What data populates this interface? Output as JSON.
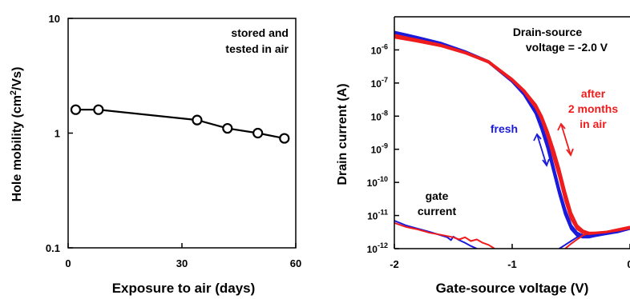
{
  "chart_data": [
    {
      "type": "line",
      "xlabel": "Exposure to air (days)",
      "ylabel_prefix": "Hole mobility (cm",
      "ylabel_sup": "2",
      "ylabel_suffix": "/Vs)",
      "xlim": [
        0,
        60
      ],
      "ylim": [
        0.1,
        10
      ],
      "yscale": "log",
      "xticks": [
        0,
        30,
        60
      ],
      "xtick_labels": [
        "0",
        "30",
        "60"
      ],
      "yticks": [
        0.1,
        1,
        10
      ],
      "ytick_labels": [
        "0.1",
        "1",
        "10"
      ],
      "annotations": [
        "stored and",
        "tested in air"
      ],
      "series": [
        {
          "color": "#000000",
          "x": [
            2,
            8,
            34,
            42,
            50,
            57
          ],
          "y": [
            1.6,
            1.6,
            1.3,
            1.1,
            1.0,
            0.9
          ]
        }
      ]
    },
    {
      "type": "line",
      "xlabel": "Gate-source voltage (V)",
      "ylabel": "Drain current (A)",
      "xlim": [
        -2,
        0
      ],
      "ylim": [
        1e-12,
        1e-05
      ],
      "yscale": "log",
      "xticks": [
        -2,
        -1,
        0
      ],
      "xtick_labels": [
        "-2",
        "-1",
        "0"
      ],
      "yticks": [
        1e-12,
        1e-11,
        1e-10,
        1e-09,
        1e-08,
        1e-07,
        1e-06
      ],
      "ytick_labels": [
        {
          "base": "10",
          "exp": "-12"
        },
        {
          "base": "10",
          "exp": "-11"
        },
        {
          "base": "10",
          "exp": "-10"
        },
        {
          "base": "10",
          "exp": "-9"
        },
        {
          "base": "10",
          "exp": "-8"
        },
        {
          "base": "10",
          "exp": "-7"
        },
        {
          "base": "10",
          "exp": "-6"
        }
      ],
      "annotations": {
        "vds": [
          "Drain-source",
          "voltage = -2.0 V"
        ],
        "fresh": "fresh",
        "after": [
          "after",
          "2 months",
          "in air"
        ],
        "gate": [
          "gate",
          "current"
        ]
      },
      "colors": {
        "fresh": "#1a1adc",
        "after": "#ee1c1c"
      },
      "series": [
        {
          "color": "#1a1adc",
          "kind": "drain",
          "x": [
            -2,
            -1.8,
            -1.6,
            -1.4,
            -1.2,
            -1.0,
            -0.9,
            -0.8,
            -0.75,
            -0.7,
            -0.65,
            -0.6,
            -0.55,
            -0.5,
            -0.45,
            -0.4,
            -0.35,
            -0.3,
            -0.2,
            -0.1,
            0
          ],
          "y": [
            3.5e-06,
            2.4e-06,
            1.6e-06,
            9e-07,
            4.5e-07,
            1.2e-07,
            5e-08,
            1.5e-08,
            5e-09,
            1.5e-09,
            3e-10,
            6e-11,
            1.5e-11,
            5e-12,
            3e-12,
            2.5e-12,
            2.5e-12,
            2.6e-12,
            3e-12,
            3.5e-12,
            4.5e-12
          ]
        },
        {
          "color": "#1a1adc",
          "kind": "drain",
          "x": [
            -2,
            -1.8,
            -1.6,
            -1.4,
            -1.2,
            -1.0,
            -0.9,
            -0.8,
            -0.75,
            -0.7,
            -0.65,
            -0.6,
            -0.55,
            -0.5,
            -0.45,
            -0.4,
            -0.35,
            -0.3,
            -0.2,
            -0.1,
            0
          ],
          "y": [
            3.2e-06,
            2.2e-06,
            1.5e-06,
            8.5e-07,
            4.2e-07,
            1.1e-07,
            4.5e-08,
            1.2e-08,
            4e-09,
            1.1e-09,
            2.2e-10,
            4.5e-11,
            1.1e-11,
            4e-12,
            2.5e-12,
            2.2e-12,
            2.2e-12,
            2.4e-12,
            2.8e-12,
            3.2e-12,
            4e-12
          ]
        },
        {
          "color": "#ee1c1c",
          "kind": "drain",
          "x": [
            -2,
            -1.8,
            -1.6,
            -1.4,
            -1.2,
            -1.0,
            -0.9,
            -0.8,
            -0.75,
            -0.7,
            -0.65,
            -0.6,
            -0.55,
            -0.5,
            -0.45,
            -0.4,
            -0.35,
            -0.3,
            -0.2,
            -0.1,
            0
          ],
          "y": [
            2.8e-06,
            2e-06,
            1.4e-06,
            8.5e-07,
            4.5e-07,
            1.3e-07,
            6e-08,
            2.2e-08,
            1e-08,
            3.5e-09,
            1e-09,
            2.5e-10,
            5e-11,
            1.2e-11,
            5e-12,
            3.5e-12,
            3e-12,
            3e-12,
            3.2e-12,
            3.8e-12,
            4.5e-12
          ]
        },
        {
          "color": "#ee1c1c",
          "kind": "drain",
          "x": [
            -2,
            -1.8,
            -1.6,
            -1.4,
            -1.2,
            -1.0,
            -0.9,
            -0.8,
            -0.75,
            -0.7,
            -0.65,
            -0.6,
            -0.55,
            -0.5,
            -0.45,
            -0.4,
            -0.35,
            -0.3,
            -0.2,
            -0.1,
            0
          ],
          "y": [
            2.4e-06,
            1.8e-06,
            1.3e-06,
            8e-07,
            4.2e-07,
            1.2e-07,
            5.5e-08,
            1.8e-08,
            8e-09,
            2.5e-09,
            6e-10,
            1.5e-10,
            3e-11,
            8e-12,
            4e-12,
            3e-12,
            2.8e-12,
            2.9e-12,
            3.2e-12,
            3.6e-12,
            4.2e-12
          ]
        },
        {
          "color": "#1a1adc",
          "kind": "gate",
          "x": [
            -2,
            -1.9,
            -1.8,
            -1.7,
            -1.6,
            -1.55,
            -1.52,
            -1.5,
            -1.45,
            -1.4,
            -1.35,
            -1.3
          ],
          "y": [
            7e-12,
            5e-12,
            4e-12,
            3.2e-12,
            2.5e-12,
            2.2e-12,
            1.8e-12,
            2.3e-12,
            1.8e-12,
            1.5e-12,
            1.2e-12,
            1e-12
          ]
        },
        {
          "color": "#ee1c1c",
          "kind": "gate",
          "x": [
            -2,
            -1.9,
            -1.8,
            -1.7,
            -1.6,
            -1.5,
            -1.45,
            -1.4,
            -1.35,
            -1.3,
            -1.25,
            -1.2,
            -1.15
          ],
          "y": [
            6e-12,
            4.5e-12,
            3.8e-12,
            3e-12,
            2.6e-12,
            2.2e-12,
            1.9e-12,
            2.2e-12,
            1.7e-12,
            1.9e-12,
            1.5e-12,
            1.3e-12,
            1e-12
          ]
        },
        {
          "color": "#1a1adc",
          "kind": "gate",
          "x": [
            -0.6,
            -0.55,
            -0.5,
            -0.45,
            -0.4
          ],
          "y": [
            1e-12,
            1.3e-12,
            1.7e-12,
            2.2e-12,
            2.6e-12
          ]
        },
        {
          "color": "#ee1c1c",
          "kind": "gate",
          "x": [
            -0.55,
            -0.5,
            -0.45,
            -0.4,
            -0.35
          ],
          "y": [
            1e-12,
            1.4e-12,
            1.9e-12,
            2.5e-12,
            2.9e-12
          ]
        }
      ]
    }
  ]
}
